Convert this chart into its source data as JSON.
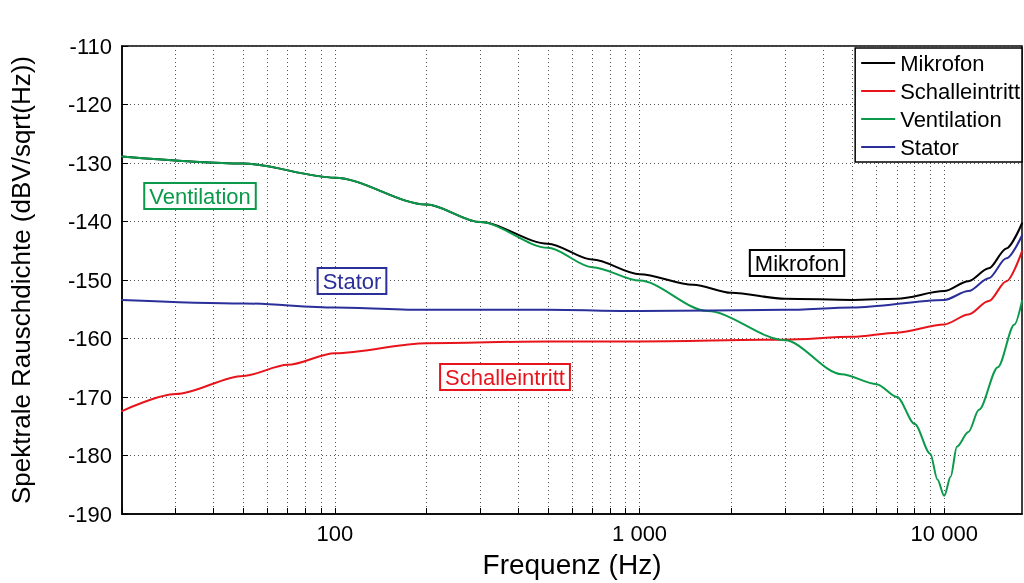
{
  "chart_data": {
    "type": "line",
    "xlabel": "Frequenz (Hz)",
    "ylabel": "Spektrale Rauschdichte (dBV/sqrt(Hz))",
    "log": "x",
    "grid": true,
    "legend": "top right",
    "marker": "none",
    "line_style": "solid",
    "xlim": [
      20,
      18000
    ],
    "xticks": [
      {
        "value": 20,
        "label": null
      },
      {
        "value": 30,
        "label": null
      },
      {
        "value": 40,
        "label": null
      },
      {
        "value": 50,
        "label": null
      },
      {
        "value": 60,
        "label": null
      },
      {
        "value": 70,
        "label": null
      },
      {
        "value": 80,
        "label": null
      },
      {
        "value": 90,
        "label": null
      },
      100,
      {
        "value": 200,
        "label": null
      },
      {
        "value": 300,
        "label": null
      },
      {
        "value": 400,
        "label": null
      },
      {
        "value": 500,
        "label": null
      },
      {
        "value": 600,
        "label": null
      },
      {
        "value": 700,
        "label": null
      },
      {
        "value": 800,
        "label": null
      },
      {
        "value": 900,
        "label": null
      },
      {
        "value": 1000,
        "label": "1 000"
      },
      {
        "value": 2000,
        "label": null
      },
      {
        "value": 3000,
        "label": null
      },
      {
        "value": 4000,
        "label": null
      },
      {
        "value": 5000,
        "label": null
      },
      {
        "value": 6000,
        "label": null
      },
      {
        "value": 7000,
        "label": null
      },
      {
        "value": 8000,
        "label": null
      },
      {
        "value": 9000,
        "label": null
      },
      {
        "value": 10000,
        "label": "10 000"
      }
    ],
    "ylim": [
      -190,
      -110
    ],
    "yticks": [
      -190,
      -180,
      -170,
      -160,
      -150,
      -140,
      -130,
      -120,
      -110
    ],
    "series": [
      {
        "name": "Mikrofon",
        "color": "#000000",
        "x": [
          20,
          50,
          100,
          200,
          300,
          500,
          700,
          1000,
          1500,
          2000,
          3000,
          5000,
          7000,
          10000,
          12000,
          14000,
          16000,
          18000
        ],
        "values": [
          -128.9,
          -130.1,
          -132.5,
          -137.1,
          -140.1,
          -143.8,
          -146.5,
          -149.0,
          -150.8,
          -152.2,
          -153.2,
          -153.4,
          -153.2,
          -151.9,
          -150.2,
          -148.0,
          -144.6,
          -140.3
        ]
      },
      {
        "name": "Schalleintritt",
        "color": "#e8141c",
        "x": [
          20,
          30,
          50,
          70,
          100,
          200,
          500,
          1000,
          3000,
          5000,
          7000,
          10000,
          12000,
          14000,
          16000,
          18000
        ],
        "values": [
          -172.4,
          -169.5,
          -166.4,
          -164.5,
          -162.5,
          -160.8,
          -160.5,
          -160.5,
          -160.2,
          -159.7,
          -159.0,
          -157.6,
          -155.9,
          -153.6,
          -150.2,
          -145.1
        ]
      },
      {
        "name": "Ventilation",
        "color": "#0a9a4a",
        "x": [
          20,
          50,
          100,
          200,
          300,
          500,
          700,
          1000,
          1670,
          3000,
          4600,
          6000,
          7000,
          8000,
          9000,
          9500,
          10000,
          10500,
          11000,
          12000,
          13000,
          15000,
          17000,
          18000
        ],
        "values": [
          -128.9,
          -130.1,
          -132.5,
          -137.1,
          -140.1,
          -144.5,
          -147.8,
          -150.1,
          -155.3,
          -160.3,
          -166.1,
          -167.8,
          -170.0,
          -174.6,
          -179.7,
          -184.1,
          -186.9,
          -183.6,
          -178.5,
          -176.0,
          -172.2,
          -164.9,
          -157.6,
          -153.6
        ]
      },
      {
        "name": "Stator",
        "color": "#2a2f9a",
        "x": [
          20,
          50,
          100,
          200,
          500,
          1000,
          3000,
          5000,
          10000,
          12000,
          14000,
          16000,
          18000
        ],
        "values": [
          -153.4,
          -154.0,
          -154.7,
          -155.1,
          -155.1,
          -155.3,
          -155.1,
          -154.7,
          -153.4,
          -151.9,
          -149.7,
          -146.3,
          -142.4
        ]
      }
    ]
  }
}
